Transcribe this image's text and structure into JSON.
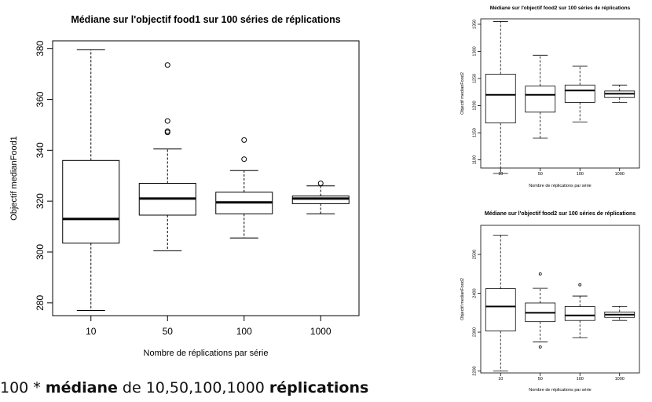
{
  "caption": {
    "part1": "100 * ",
    "part2": "médiane",
    "part3": " de 10,50,100,1000 ",
    "part4": "réplications"
  },
  "chart_data": [
    {
      "type": "boxplot",
      "title": "Médiane sur l'objectif food1 sur 100 séries de réplications",
      "xlabel": "Nombre de réplications par série",
      "ylabel": "Objectif medianFood1",
      "categories": [
        "10",
        "50",
        "100",
        "1000"
      ],
      "ylim": [
        275,
        383
      ],
      "yticks": [
        280,
        300,
        320,
        340,
        360,
        380
      ],
      "boxes": [
        {
          "q1": 303.5,
          "median": 313,
          "q3": 336,
          "whisker_low": 277,
          "whisker_high": 379.5,
          "outliers": []
        },
        {
          "q1": 314.5,
          "median": 321,
          "q3": 327,
          "whisker_low": 300.5,
          "whisker_high": 340.5,
          "outliers": [
            373.5,
            351.5,
            347.5,
            347
          ]
        },
        {
          "q1": 315,
          "median": 319.5,
          "q3": 323.5,
          "whisker_low": 305.5,
          "whisker_high": 332,
          "outliers": [
            344,
            336.5
          ]
        },
        {
          "q1": 319,
          "median": 321,
          "q3": 322,
          "whisker_low": 315,
          "whisker_high": 326,
          "outliers": [
            327
          ]
        }
      ]
    },
    {
      "type": "boxplot",
      "title": "Médiane sur l'objectif food2 sur 100 séries de réplications",
      "xlabel": "Nombre de réplications par série",
      "ylabel": "Objectif medianFood2",
      "categories": [
        "10",
        "50",
        "100",
        "1000"
      ],
      "ylim": [
        1085,
        1360
      ],
      "yticks": [
        1100,
        1150,
        1200,
        1250,
        1300,
        1350
      ],
      "boxes": [
        {
          "q1": 1168,
          "median": 1220,
          "q3": 1258,
          "whisker_low": 1075,
          "whisker_high": 1355,
          "outliers": []
        },
        {
          "q1": 1188,
          "median": 1220,
          "q3": 1236,
          "whisker_low": 1140,
          "whisker_high": 1293,
          "outliers": []
        },
        {
          "q1": 1206,
          "median": 1228,
          "q3": 1238,
          "whisker_low": 1170,
          "whisker_high": 1273,
          "outliers": []
        },
        {
          "q1": 1215,
          "median": 1222,
          "q3": 1227,
          "whisker_low": 1206,
          "whisker_high": 1238,
          "outliers": []
        }
      ]
    },
    {
      "type": "boxplot",
      "title": "Médiane sur l'objectif food2 sur 100 séries de réplications",
      "xlabel": "Nombre de réplications par série",
      "ylabel": "Objectif medianFood2",
      "categories": [
        "10",
        "50",
        "100",
        "1000"
      ],
      "ylim": [
        2195,
        2575
      ],
      "yticks": [
        2200,
        2300,
        2400,
        2500
      ],
      "boxes": [
        {
          "q1": 2303,
          "median": 2366,
          "q3": 2412,
          "whisker_low": 2200,
          "whisker_high": 2550,
          "outliers": []
        },
        {
          "q1": 2327,
          "median": 2350,
          "q3": 2375,
          "whisker_low": 2275,
          "whisker_high": 2413,
          "outliers": [
            2450,
            2262
          ]
        },
        {
          "q1": 2330,
          "median": 2343,
          "q3": 2366,
          "whisker_low": 2286,
          "whisker_high": 2393,
          "outliers": [
            2422
          ]
        },
        {
          "q1": 2338,
          "median": 2345,
          "q3": 2352,
          "whisker_low": 2330,
          "whisker_high": 2366,
          "outliers": []
        }
      ]
    }
  ]
}
